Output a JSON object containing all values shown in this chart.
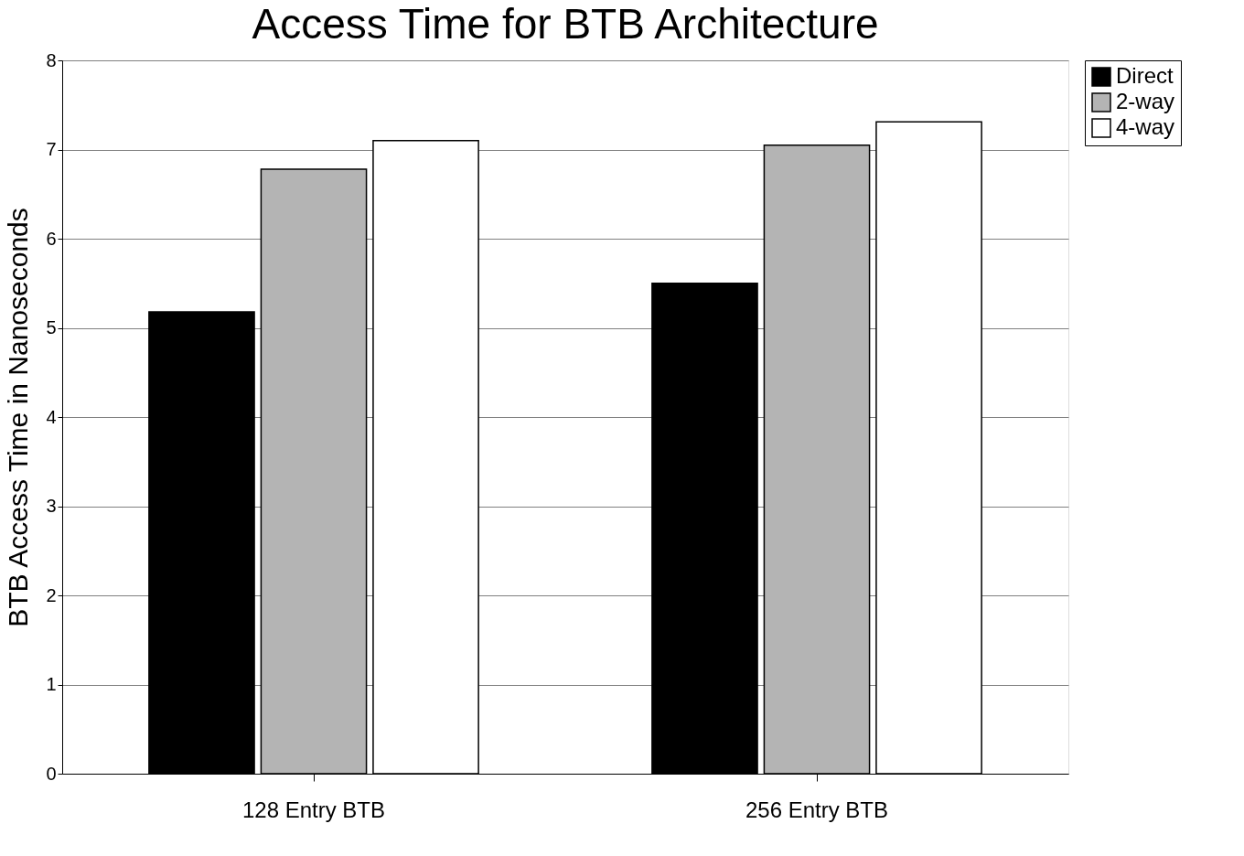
{
  "chart_data": {
    "type": "bar",
    "title": "Access Time for BTB Architecture",
    "ylabel": "BTB Access Time in Nanoseconds",
    "categories": [
      "128 Entry BTB",
      "256 Entry BTB"
    ],
    "series": [
      {
        "name": "Direct",
        "color": "#000000",
        "values": [
          5.18,
          5.5
        ]
      },
      {
        "name": "2-way",
        "color": "#b4b4b4",
        "values": [
          6.78,
          7.05
        ]
      },
      {
        "name": "4-way",
        "color": "#ffffff",
        "values": [
          7.1,
          7.31
        ]
      }
    ],
    "ylim": [
      0,
      8
    ],
    "yticks": [
      0,
      1,
      2,
      3,
      4,
      5,
      6,
      7,
      8
    ],
    "grid": "y",
    "legend": "right"
  }
}
